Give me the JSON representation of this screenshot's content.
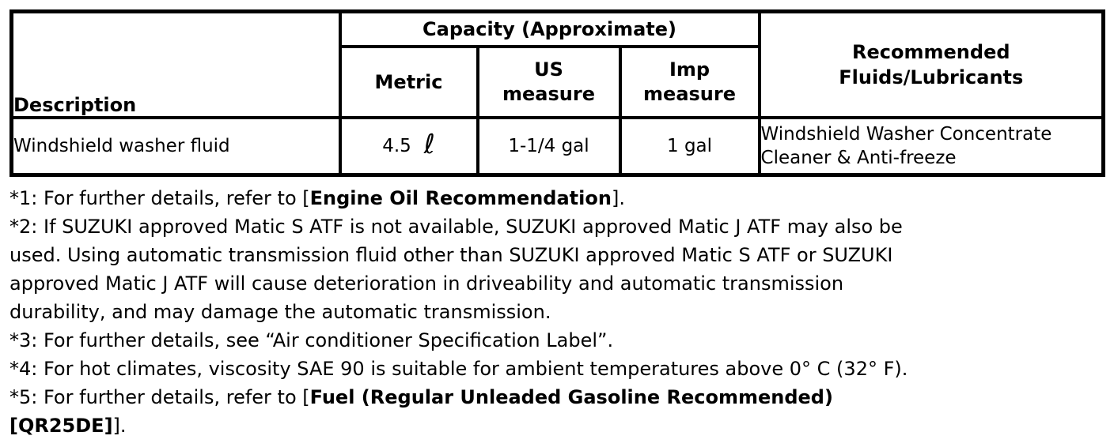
{
  "table": {
    "col1_header": "Description",
    "capacity_header": "Capacity (Approximate)",
    "sub_headers": [
      "Metric",
      "US\nmeasure",
      "Imp\nmeasure"
    ],
    "recommended_header": "Recommended\nFluids/Lubricants",
    "row": {
      "description": "Windshield washer fluid",
      "metric_value": "4.5",
      "metric_unit": "ℓ",
      "us_measure": "1-1/4 gal",
      "imp_measure": "1 gal",
      "recommended": "Windshield Washer Concentrate\nCleaner & Anti-freeze"
    }
  },
  "footnotes": [
    {
      "segments": [
        {
          "t": "*1: For further details, refer to [",
          "b": false
        },
        {
          "t": "Engine Oil Recommendation",
          "b": true
        },
        {
          "t": "].",
          "b": false
        }
      ]
    },
    {
      "segments": [
        {
          "t": "*2: If SUZUKI approved Matic S ATF is not available, SUZUKI approved Matic J ATF may also be\nused. Using automatic transmission fluid other than SUZUKI approved Matic S ATF or SUZUKI\napproved Matic J ATF will cause deterioration in driveability and automatic transmission\ndurability, and may damage the automatic transmission.",
          "b": false
        }
      ]
    },
    {
      "segments": [
        {
          "t": "*3: For further details, see “Air conditioner Specification Label”.",
          "b": false
        }
      ]
    },
    {
      "segments": [
        {
          "t": "*4: For hot climates, viscosity SAE 90 is suitable for ambient temperatures above 0° C (32° F).",
          "b": false
        }
      ]
    },
    {
      "segments": [
        {
          "t": "*5: For further details, refer to [",
          "b": false
        },
        {
          "t": "Fuel (Regular Unleaded Gasoline Recommended)\n[QR25DE]",
          "b": true
        },
        {
          "t": "].",
          "b": false
        }
      ]
    }
  ]
}
